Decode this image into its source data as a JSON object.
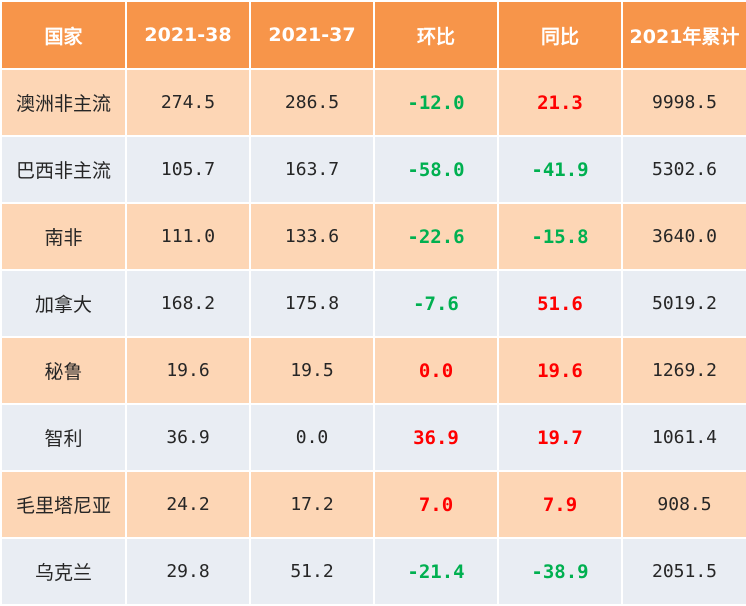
{
  "colors": {
    "header_bg": "#f7954a",
    "row_odd_bg": "#fdd6b5",
    "row_even_bg": "#e9edf3",
    "increase_text": "#ff0000",
    "decrease_text": "#00b050"
  },
  "table": {
    "headers": [
      "国家",
      "2021-38",
      "2021-37",
      "环比",
      "同比",
      "2021年累计"
    ],
    "rows": [
      {
        "country": "澳洲非主流",
        "w38": "274.5",
        "w37": "286.5",
        "mom": "-12.0",
        "mom_dir": "down",
        "yoy": "21.3",
        "yoy_dir": "up",
        "ytd": "9998.5"
      },
      {
        "country": "巴西非主流",
        "w38": "105.7",
        "w37": "163.7",
        "mom": "-58.0",
        "mom_dir": "down",
        "yoy": "-41.9",
        "yoy_dir": "down",
        "ytd": "5302.6"
      },
      {
        "country": "南非",
        "w38": "111.0",
        "w37": "133.6",
        "mom": "-22.6",
        "mom_dir": "down",
        "yoy": "-15.8",
        "yoy_dir": "down",
        "ytd": "3640.0"
      },
      {
        "country": "加拿大",
        "w38": "168.2",
        "w37": "175.8",
        "mom": "-7.6",
        "mom_dir": "down",
        "yoy": "51.6",
        "yoy_dir": "up",
        "ytd": "5019.2"
      },
      {
        "country": "秘鲁",
        "w38": "19.6",
        "w37": "19.5",
        "mom": "0.0",
        "mom_dir": "up",
        "yoy": "19.6",
        "yoy_dir": "up",
        "ytd": "1269.2"
      },
      {
        "country": "智利",
        "w38": "36.9",
        "w37": "0.0",
        "mom": "36.9",
        "mom_dir": "up",
        "yoy": "19.7",
        "yoy_dir": "up",
        "ytd": "1061.4"
      },
      {
        "country": "毛里塔尼亚",
        "w38": "24.2",
        "w37": "17.2",
        "mom": "7.0",
        "mom_dir": "up",
        "yoy": "7.9",
        "yoy_dir": "up",
        "ytd": "908.5"
      },
      {
        "country": "乌克兰",
        "w38": "29.8",
        "w37": "51.2",
        "mom": "-21.4",
        "mom_dir": "down",
        "yoy": "-38.9",
        "yoy_dir": "down",
        "ytd": "2051.5"
      }
    ]
  }
}
